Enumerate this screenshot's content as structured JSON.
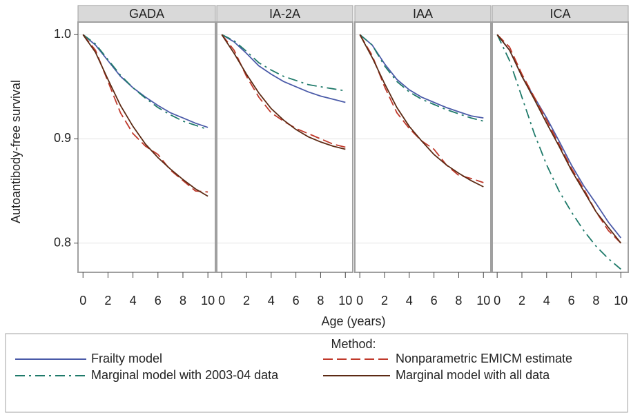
{
  "ylabel": "Autoantibody-free survival",
  "xlabel": "Age (years)",
  "legend": {
    "title": "Method:"
  },
  "chart_data": [
    {
      "type": "line",
      "title": "GADA",
      "x": [
        0,
        1,
        2,
        3,
        4,
        5,
        6,
        7,
        8,
        9,
        10
      ],
      "xlim": [
        -0.4,
        10.6
      ],
      "ylim": [
        0.772,
        1.012
      ],
      "xticks": [
        0,
        2,
        4,
        6,
        8,
        10
      ],
      "yticks": [
        0.8,
        0.9,
        {
          "value": 1,
          "label": "1.0"
        }
      ],
      "grid": true,
      "series": [
        {
          "name": "Frailty model",
          "color": "#4a5aa8",
          "style": "solid",
          "values": [
            1,
            0.99,
            0.975,
            0.96,
            0.949,
            0.94,
            0.932,
            0.925,
            0.92,
            0.915,
            0.911
          ]
        },
        {
          "name": "Marginal model with 2003-04 data",
          "color": "#1f7a6a",
          "style": "dashdot",
          "values": [
            1,
            0.991,
            0.976,
            0.961,
            0.949,
            0.939,
            0.93,
            0.923,
            0.917,
            0.913,
            0.909
          ]
        },
        {
          "name": "Nonparametric EMICM estimate",
          "color": "#c0392b",
          "style": "dash",
          "values": [
            1,
            0.985,
            0.955,
            0.925,
            0.905,
            0.893,
            0.885,
            0.87,
            0.86,
            0.85,
            0.849
          ]
        },
        {
          "name": "Marginal model with all data",
          "color": "#5c2a14",
          "style": "solid",
          "values": [
            1,
            0.983,
            0.957,
            0.932,
            0.912,
            0.895,
            0.882,
            0.871,
            0.861,
            0.852,
            0.845
          ]
        }
      ]
    },
    {
      "type": "line",
      "title": "IA-2A",
      "x": [
        0,
        1,
        2,
        3,
        4,
        5,
        6,
        7,
        8,
        9,
        10
      ],
      "xlim": [
        -0.4,
        10.6
      ],
      "ylim": [
        0.772,
        1.012
      ],
      "xticks": [
        0,
        2,
        4,
        6,
        8,
        10
      ],
      "yticks": [
        0.8,
        0.9,
        {
          "value": 1,
          "label": "1.0"
        }
      ],
      "grid": true,
      "series": [
        {
          "name": "Frailty model",
          "color": "#4a5aa8",
          "style": "solid",
          "values": [
            1,
            0.993,
            0.982,
            0.97,
            0.962,
            0.955,
            0.95,
            0.945,
            0.941,
            0.938,
            0.935
          ]
        },
        {
          "name": "Marginal model with 2003-04 data",
          "color": "#1f7a6a",
          "style": "dashdot",
          "values": [
            1,
            0.994,
            0.984,
            0.973,
            0.966,
            0.96,
            0.956,
            0.952,
            0.95,
            0.948,
            0.946
          ]
        },
        {
          "name": "Nonparametric EMICM estimate",
          "color": "#c0392b",
          "style": "dash",
          "values": [
            1,
            0.985,
            0.96,
            0.94,
            0.925,
            0.917,
            0.91,
            0.905,
            0.9,
            0.895,
            0.892
          ]
        },
        {
          "name": "Marginal model with all data",
          "color": "#5c2a14",
          "style": "solid",
          "values": [
            1,
            0.982,
            0.962,
            0.944,
            0.929,
            0.918,
            0.909,
            0.902,
            0.897,
            0.893,
            0.89
          ]
        }
      ]
    },
    {
      "type": "line",
      "title": "IAA",
      "x": [
        0,
        1,
        2,
        3,
        4,
        5,
        6,
        7,
        8,
        9,
        10
      ],
      "xlim": [
        -0.4,
        10.6
      ],
      "ylim": [
        0.772,
        1.012
      ],
      "xticks": [
        0,
        2,
        4,
        6,
        8,
        10
      ],
      "yticks": [
        0.8,
        0.9,
        {
          "value": 1,
          "label": "1.0"
        }
      ],
      "grid": true,
      "series": [
        {
          "name": "Frailty model",
          "color": "#4a5aa8",
          "style": "solid",
          "values": [
            1,
            0.99,
            0.972,
            0.957,
            0.947,
            0.94,
            0.935,
            0.93,
            0.926,
            0.922,
            0.92
          ]
        },
        {
          "name": "Marginal model with 2003-04 data",
          "color": "#1f7a6a",
          "style": "dashdot",
          "values": [
            1,
            0.99,
            0.97,
            0.955,
            0.945,
            0.938,
            0.933,
            0.928,
            0.924,
            0.92,
            0.917
          ]
        },
        {
          "name": "Nonparametric EMICM estimate",
          "color": "#c0392b",
          "style": "dash",
          "values": [
            1,
            0.98,
            0.95,
            0.925,
            0.91,
            0.898,
            0.89,
            0.875,
            0.865,
            0.862,
            0.858
          ]
        },
        {
          "name": "Marginal model with all data",
          "color": "#5c2a14",
          "style": "solid",
          "values": [
            1,
            0.978,
            0.953,
            0.93,
            0.912,
            0.898,
            0.885,
            0.875,
            0.867,
            0.86,
            0.854
          ]
        }
      ]
    },
    {
      "type": "line",
      "title": "ICA",
      "x": [
        0,
        1,
        2,
        3,
        4,
        5,
        6,
        7,
        8,
        9,
        10
      ],
      "xlim": [
        -0.4,
        10.6
      ],
      "ylim": [
        0.772,
        1.012
      ],
      "xticks": [
        0,
        2,
        4,
        6,
        8,
        10
      ],
      "yticks": [
        0.8,
        0.9,
        {
          "value": 1,
          "label": "1.0"
        }
      ],
      "grid": true,
      "series": [
        {
          "name": "Frailty model",
          "color": "#4a5aa8",
          "style": "solid",
          "values": [
            1,
            0.985,
            0.96,
            0.94,
            0.92,
            0.898,
            0.875,
            0.855,
            0.838,
            0.82,
            0.805
          ]
        },
        {
          "name": "Marginal model with 2003-04 data",
          "color": "#1f7a6a",
          "style": "dashdot",
          "values": [
            1,
            0.975,
            0.94,
            0.905,
            0.875,
            0.85,
            0.83,
            0.812,
            0.797,
            0.785,
            0.775
          ]
        },
        {
          "name": "Nonparametric EMICM estimate",
          "color": "#c0392b",
          "style": "dash",
          "values": [
            1,
            0.988,
            0.962,
            0.94,
            0.918,
            0.895,
            0.872,
            0.852,
            0.83,
            0.812,
            0.8
          ]
        },
        {
          "name": "Marginal model with all data",
          "color": "#5c2a14",
          "style": "solid",
          "values": [
            1,
            0.985,
            0.96,
            0.938,
            0.915,
            0.893,
            0.87,
            0.85,
            0.83,
            0.815,
            0.8
          ]
        }
      ]
    }
  ]
}
